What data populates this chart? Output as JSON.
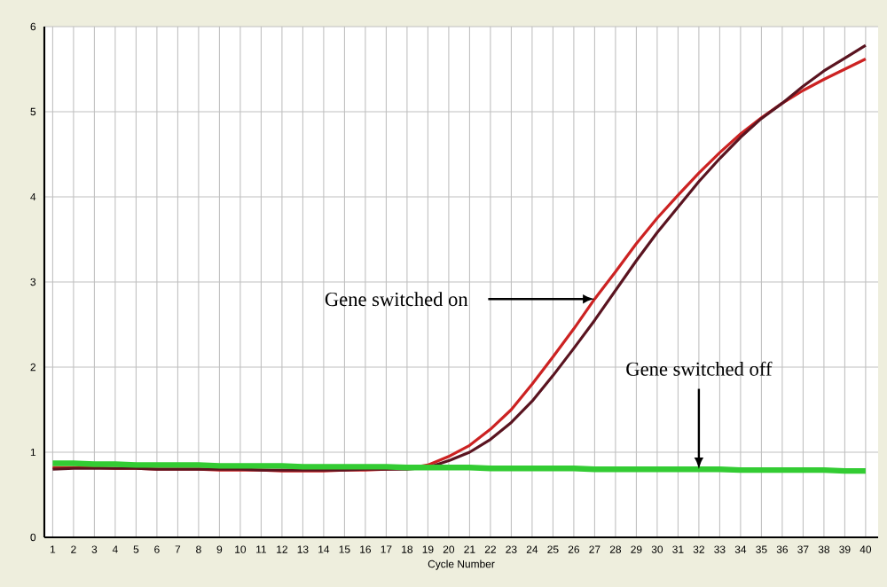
{
  "chart_data": {
    "type": "line",
    "xlabel": "Cycle Number",
    "x": [
      1,
      2,
      3,
      4,
      5,
      6,
      7,
      8,
      9,
      10,
      11,
      12,
      13,
      14,
      15,
      16,
      17,
      18,
      19,
      20,
      21,
      22,
      23,
      24,
      25,
      26,
      27,
      28,
      29,
      30,
      31,
      32,
      33,
      34,
      35,
      36,
      37,
      38,
      39,
      40
    ],
    "series": [
      {
        "color": "#cc2222",
        "values": [
          0.82,
          0.82,
          0.82,
          0.81,
          0.81,
          0.8,
          0.8,
          0.8,
          0.79,
          0.79,
          0.79,
          0.78,
          0.78,
          0.78,
          0.79,
          0.79,
          0.8,
          0.81,
          0.85,
          0.95,
          1.08,
          1.27,
          1.5,
          1.8,
          2.12,
          2.45,
          2.8,
          3.12,
          3.45,
          3.75,
          4.02,
          4.28,
          4.52,
          4.74,
          4.93,
          5.1,
          5.25,
          5.38,
          5.5,
          5.62
        ]
      },
      {
        "color": "#5a1420",
        "values": [
          0.8,
          0.81,
          0.81,
          0.81,
          0.81,
          0.8,
          0.8,
          0.8,
          0.8,
          0.8,
          0.79,
          0.79,
          0.79,
          0.79,
          0.79,
          0.8,
          0.8,
          0.8,
          0.82,
          0.9,
          1.0,
          1.15,
          1.35,
          1.6,
          1.9,
          2.22,
          2.55,
          2.9,
          3.25,
          3.58,
          3.88,
          4.18,
          4.45,
          4.7,
          4.92,
          5.1,
          5.3,
          5.48,
          5.63,
          5.78
        ]
      },
      {
        "color": "#33cc33",
        "values": [
          0.87,
          0.87,
          0.86,
          0.86,
          0.85,
          0.85,
          0.85,
          0.85,
          0.84,
          0.84,
          0.84,
          0.84,
          0.83,
          0.83,
          0.83,
          0.83,
          0.83,
          0.82,
          0.82,
          0.82,
          0.82,
          0.81,
          0.81,
          0.81,
          0.81,
          0.81,
          0.8,
          0.8,
          0.8,
          0.8,
          0.8,
          0.8,
          0.8,
          0.79,
          0.79,
          0.79,
          0.79,
          0.79,
          0.78,
          0.78
        ]
      }
    ],
    "xlim": [
      0.6,
      40.6
    ],
    "xticks": [
      1,
      2,
      3,
      4,
      5,
      6,
      7,
      8,
      9,
      10,
      11,
      12,
      13,
      14,
      15,
      16,
      17,
      18,
      19,
      20,
      21,
      22,
      23,
      24,
      25,
      26,
      27,
      28,
      29,
      30,
      31,
      32,
      33,
      34,
      35,
      36,
      37,
      38,
      39,
      40
    ],
    "ylim": [
      0,
      6
    ],
    "yticks": [
      0,
      1,
      2,
      3,
      4,
      5,
      6
    ],
    "grid": true,
    "annotations": [
      {
        "text": "Gene switched on",
        "x": 27,
        "y": 2.8
      },
      {
        "text": "Gene switched off",
        "x": 32,
        "y": 0.8
      }
    ]
  }
}
